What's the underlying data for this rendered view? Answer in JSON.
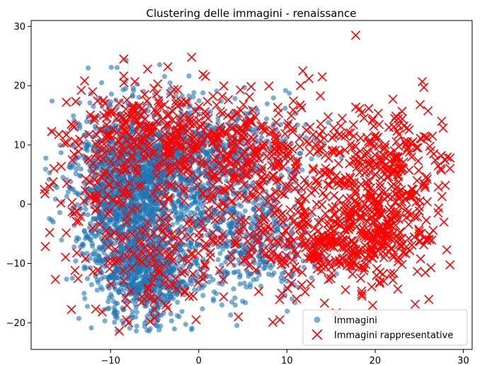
{
  "chart_data": {
    "type": "scatter",
    "title": "Clustering delle immagini - renaissance",
    "xlabel": "",
    "ylabel": "",
    "xlim": [
      -19,
      31
    ],
    "ylim": [
      -24.5,
      31
    ],
    "xticks": [
      -10,
      0,
      10,
      20,
      30
    ],
    "xtick_labels": [
      "−10",
      "0",
      "10",
      "20",
      "30"
    ],
    "yticks": [
      -20,
      -10,
      0,
      10,
      20,
      30
    ],
    "ytick_labels": [
      "−20",
      "−10",
      "0",
      "10",
      "20",
      "30"
    ],
    "grid": false,
    "legend_position": "lower-right",
    "series": [
      {
        "name": "Immagini",
        "marker": "circle",
        "color": "#1f77b4",
        "clusters": [
          {
            "cx": -8,
            "cy": 2,
            "sx": 3.0,
            "sy": 7.0,
            "n": 1400
          },
          {
            "cx": -6,
            "cy": -12,
            "sx": 2.5,
            "sy": 4.0,
            "n": 700
          },
          {
            "cx": -3,
            "cy": 8,
            "sx": 4.5,
            "sy": 4.5,
            "n": 800
          },
          {
            "cx": 3,
            "cy": -2,
            "sx": 4.0,
            "sy": 6.0,
            "n": 500
          },
          {
            "cx": 8,
            "cy": -8,
            "sx": 4.0,
            "sy": 4.0,
            "n": 200
          },
          {
            "cx": 6,
            "cy": 10,
            "sx": 3.5,
            "sy": 4.0,
            "n": 150
          }
        ],
        "extra_points": [
          {
            "x": -8.3,
            "y": 19.5
          },
          {
            "x": -5.5,
            "y": -21
          },
          {
            "x": -4.5,
            "y": -21.2
          },
          {
            "x": -11.5,
            "y": -14.5
          },
          {
            "x": -15,
            "y": 12
          },
          {
            "x": -16.5,
            "y": -3
          },
          {
            "x": -14,
            "y": 2
          },
          {
            "x": 10,
            "y": -13
          },
          {
            "x": 14,
            "y": -9
          }
        ]
      },
      {
        "name": "Immagini rappresentative",
        "marker": "x",
        "color": "#ff0000",
        "clusters": [
          {
            "cx": -6,
            "cy": 12,
            "sx": 4.0,
            "sy": 3.5,
            "n": 200
          },
          {
            "cx": -10,
            "cy": 0,
            "sx": 3.5,
            "sy": 7.0,
            "n": 120
          },
          {
            "cx": -5,
            "cy": -10,
            "sx": 3.0,
            "sy": 4.5,
            "n": 80
          },
          {
            "cx": 2,
            "cy": 8,
            "sx": 4.5,
            "sy": 5.0,
            "n": 180
          },
          {
            "cx": 9,
            "cy": 8,
            "sx": 4.0,
            "sy": 5.0,
            "n": 150
          },
          {
            "cx": 14,
            "cy": -6,
            "sx": 4.0,
            "sy": 4.0,
            "n": 170
          },
          {
            "cx": 20,
            "cy": -4,
            "sx": 3.5,
            "sy": 5.0,
            "n": 280
          },
          {
            "cx": 21,
            "cy": 7,
            "sx": 3.5,
            "sy": 5.0,
            "n": 220
          },
          {
            "cx": 6,
            "cy": -6,
            "sx": 4.0,
            "sy": 5.0,
            "n": 90
          }
        ],
        "extra_points": [
          {
            "x": 17.8,
            "y": 28.5
          },
          {
            "x": -8.5,
            "y": 24.5
          },
          {
            "x": -0.8,
            "y": 24.8
          },
          {
            "x": -3.5,
            "y": 23.2
          },
          {
            "x": -5.8,
            "y": 22.8
          },
          {
            "x": -17.5,
            "y": 2.5
          },
          {
            "x": -16.5,
            "y": 3.8
          },
          {
            "x": 28.5,
            "y": 7.8
          },
          {
            "x": 27.5,
            "y": 8.2
          },
          {
            "x": 26.5,
            "y": 11.5
          },
          {
            "x": -0.3,
            "y": -19.5
          },
          {
            "x": -8.2,
            "y": -19.5
          },
          {
            "x": -5.5,
            "y": -19.8
          },
          {
            "x": 4.5,
            "y": -19
          },
          {
            "x": 11.8,
            "y": 22.5
          },
          {
            "x": 14,
            "y": 21.5
          },
          {
            "x": 12.5,
            "y": 21.2
          },
          {
            "x": -15,
            "y": 17.2
          },
          {
            "x": 9.2,
            "y": -19.5
          },
          {
            "x": 18.5,
            "y": -15.5
          }
        ]
      }
    ]
  }
}
